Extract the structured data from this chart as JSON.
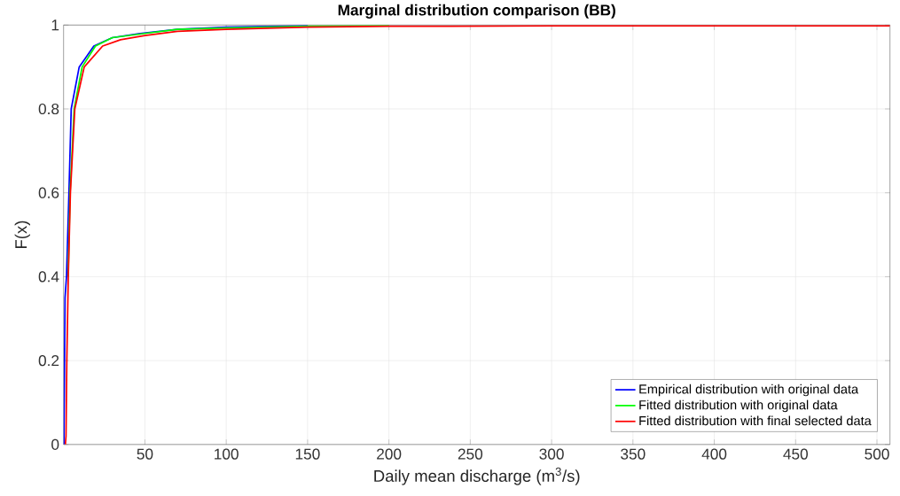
{
  "chart_data": {
    "type": "line",
    "title": "**Marginal distribution comparison (BB)**",
    "xlabel": "Daily mean discharge (m$^{3}$/s)",
    "ylabel": "F(x)",
    "xlim": [
      0,
      508
    ],
    "ylim": [
      0,
      1
    ],
    "xticks": [
      50,
      100,
      150,
      200,
      250,
      300,
      350,
      400,
      450,
      500
    ],
    "yticks": [
      0,
      0.2,
      0.4,
      0.6,
      0.8,
      1
    ],
    "grid": true,
    "legend": "bottom right",
    "series": [
      {
        "name": "Empirical distribution with original data",
        "color": "#0000ff",
        "x": [
          0.2,
          0.6,
          0.9,
          1.8,
          3.3,
          4.7,
          9.6,
          18.6,
          30,
          47,
          70,
          100,
          150
        ],
        "values": [
          0,
          0.2,
          0.35,
          0.4,
          0.6,
          0.8,
          0.9,
          0.95,
          0.97,
          0.98,
          0.99,
          0.995,
          0.998
        ]
      },
      {
        "name": "Fitted distribution with original data",
        "color": "#00ff00",
        "x": [
          2.8,
          4.0,
          6.5,
          11.4,
          19.6,
          30,
          50,
          70,
          100,
          150,
          200
        ],
        "values": [
          0.4,
          0.6,
          0.8,
          0.9,
          0.95,
          0.97,
          0.98,
          0.99,
          0.993,
          0.997,
          0.998
        ]
      },
      {
        "name": "Fitted distribution with final selected data",
        "color": "#ff0000",
        "x": [
          1.1,
          1.5,
          2.0,
          2.9,
          4.2,
          6.9,
          12.7,
          24,
          35,
          50,
          70,
          100,
          150,
          200,
          300,
          400,
          508
        ],
        "values": [
          0,
          0.02,
          0.2,
          0.4,
          0.6,
          0.8,
          0.9,
          0.95,
          0.965,
          0.975,
          0.985,
          0.99,
          0.995,
          0.997,
          0.998,
          0.998,
          0.998
        ]
      }
    ]
  }
}
